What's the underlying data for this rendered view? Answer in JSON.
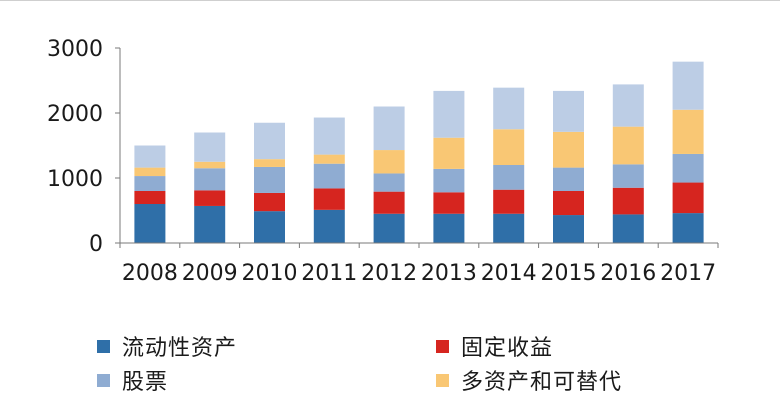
{
  "chart_data": {
    "type": "bar",
    "stacked": true,
    "categories": [
      "2008",
      "2009",
      "2010",
      "2011",
      "2012",
      "2013",
      "2014",
      "2015",
      "2016",
      "2017"
    ],
    "series": [
      {
        "name": "流动性资产",
        "color": "#2f6fa8",
        "values": [
          600,
          570,
          490,
          510,
          450,
          450,
          450,
          430,
          440,
          460
        ]
      },
      {
        "name": "固定收益",
        "color": "#d6251f",
        "values": [
          200,
          240,
          280,
          330,
          340,
          330,
          370,
          370,
          410,
          470
        ]
      },
      {
        "name": "股票",
        "color": "#8facd2",
        "values": [
          230,
          340,
          400,
          380,
          280,
          360,
          380,
          360,
          360,
          440
        ]
      },
      {
        "name": "多资产和可替代",
        "color": "#f9c774",
        "values": [
          130,
          100,
          120,
          140,
          360,
          480,
          550,
          550,
          580,
          680
        ]
      },
      {
        "name": "",
        "color": "#bccde5",
        "values": [
          340,
          450,
          560,
          570,
          670,
          720,
          640,
          630,
          650,
          740
        ]
      }
    ],
    "y_ticks": [
      "0",
      "1000",
      "2000",
      "3000"
    ],
    "ylim": [
      0,
      3000
    ],
    "grid": false,
    "legend_position": "bottom",
    "legend_columns": 2
  }
}
